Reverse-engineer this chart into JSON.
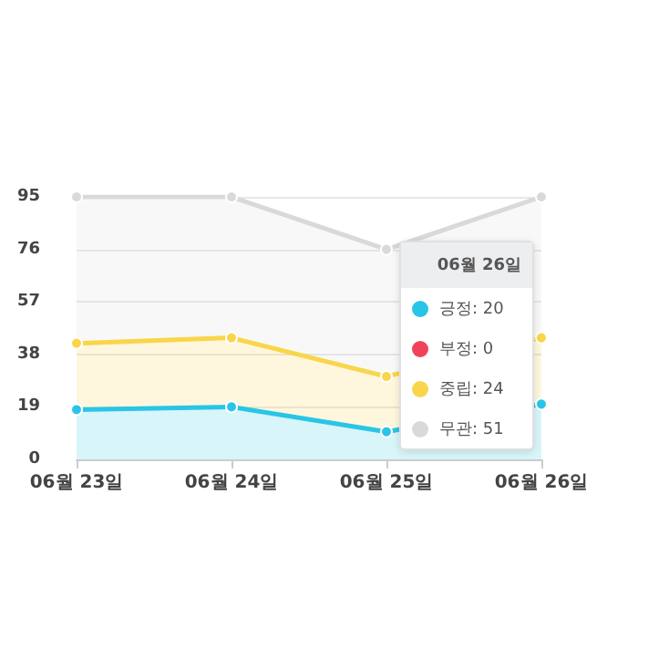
{
  "chart_data": {
    "type": "area",
    "stacked": true,
    "categories": [
      "06월 23일",
      "06월 24일",
      "06월 25일",
      "06월 26일"
    ],
    "series": [
      {
        "color": "#29c5e6",
        "values": [
          18,
          19,
          10,
          20
        ]
      },
      {
        "color": "#f0435a",
        "values": [
          null,
          null,
          null,
          null
        ]
      },
      {
        "color": "#f9d54a",
        "values": [
          24,
          25,
          20,
          24
        ]
      },
      {
        "color": "#d9d9d9",
        "values": [
          53,
          51,
          46,
          51
        ]
      }
    ],
    "annotations": [
      "06월 26일",
      "긍정: 20",
      "부정: 0",
      "중립: 24",
      "무관: 51"
    ],
    "ylim": [
      0,
      95
    ],
    "yticks": [
      0,
      19,
      38,
      57,
      76,
      95
    ],
    "grid": "y",
    "marker": "circle",
    "line_style": "solid"
  }
}
